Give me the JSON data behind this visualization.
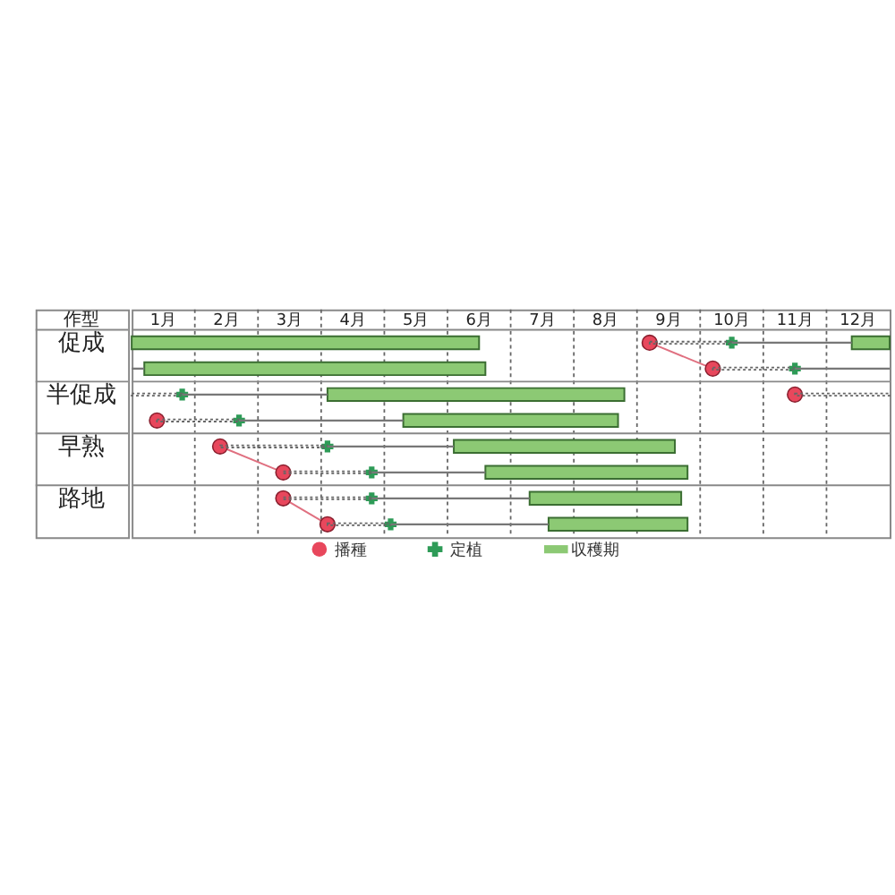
{
  "chart_data": {
    "type": "bar",
    "orientation": "horizontal",
    "ylabel": "作型",
    "categories": [
      "促成",
      null,
      "半促成",
      null,
      "早熟",
      null,
      "路地",
      null
    ],
    "xlim": [
      0,
      12
    ],
    "xticks": [
      {
        "value": 0.5,
        "label": "1月"
      },
      {
        "value": 1,
        "label": null
      },
      {
        "value": 1.5,
        "label": "2月"
      },
      {
        "value": 2,
        "label": null
      },
      {
        "value": 2.5,
        "label": "3月"
      },
      {
        "value": 3,
        "label": null
      },
      {
        "value": 3.5,
        "label": "4月"
      },
      {
        "value": 4,
        "label": null
      },
      {
        "value": 4.5,
        "label": "5月"
      },
      {
        "value": 5,
        "label": null
      },
      {
        "value": 5.5,
        "label": "6月"
      },
      {
        "value": 6,
        "label": null
      },
      {
        "value": 6.5,
        "label": "7月"
      },
      {
        "value": 7,
        "label": null
      },
      {
        "value": 7.5,
        "label": "8月"
      },
      {
        "value": 8,
        "label": null
      },
      {
        "value": 8.5,
        "label": "9月"
      },
      {
        "value": 9,
        "label": null
      },
      {
        "value": 9.5,
        "label": "10月"
      },
      {
        "value": 10,
        "label": null
      },
      {
        "value": 10.5,
        "label": "11月"
      },
      {
        "value": 11,
        "label": null
      },
      {
        "value": 11.5,
        "label": "12月"
      }
    ],
    "grid": true,
    "legend": "bottom",
    "series": [
      {
        "name": "播種",
        "type": "scatter",
        "marker": "circle",
        "color": "#e8475c",
        "values": [
          8.2,
          9.2,
          10.5,
          0.4,
          1.4,
          2.4,
          2.4,
          3.1
        ]
      },
      {
        "name": "定植",
        "type": "scatter",
        "marker": "cross",
        "color": "#2e9b57",
        "values": [
          9.5,
          10.5,
          0.8,
          1.7,
          3.1,
          3.8,
          3.8,
          4.1
        ]
      },
      {
        "name": "収穫期",
        "color": "#8cc974",
        "base": [
          0,
          0.2,
          3.1,
          4.3,
          5.1,
          5.6,
          6.3,
          6.6
        ],
        "values": [
          5.5,
          5.4,
          4.7,
          3.4,
          3.5,
          3.2,
          2.4,
          2.2
        ]
      },
      {
        "color": "#8cc974",
        "base": [
          11.4,
          null,
          null,
          null,
          null,
          null,
          null,
          null
        ],
        "values": [
          0.6,
          null,
          null,
          null,
          null,
          null,
          null,
          null
        ]
      },
      {
        "color": "#666666",
        "line_style": "dotted",
        "base": [
          8.2,
          9.2,
          10.5,
          0.4,
          1.4,
          2.4,
          2.4,
          3.1
        ],
        "values": [
          1.3,
          1.3,
          1.5,
          1.3,
          1.7,
          1.4,
          1.4,
          1.0
        ]
      },
      {
        "color": "#666666",
        "line_style": "dotted",
        "base": [
          null,
          null,
          0,
          null,
          null,
          null,
          null,
          null
        ],
        "values": [
          null,
          null,
          0.8,
          null,
          null,
          null,
          null,
          null
        ]
      },
      {
        "color": "#777777",
        "line_style": "solid",
        "base": [
          9.5,
          10.5,
          0.8,
          1.7,
          3.1,
          3.8,
          3.8,
          4.1
        ],
        "values": [
          1.9,
          1.5,
          2.3,
          2.6,
          2.0,
          1.8,
          2.5,
          2.5
        ]
      },
      {
        "color": "#777777",
        "line_style": "solid",
        "base": [
          null,
          0,
          null,
          null,
          null,
          null,
          null,
          null
        ],
        "values": [
          null,
          0.2,
          null,
          null,
          null,
          null,
          null,
          null
        ]
      },
      {
        "type": "line",
        "color": "#e07080",
        "values": [
          8.2,
          9.2,
          null,
          null,
          null,
          null,
          null,
          null
        ]
      },
      {
        "type": "line",
        "color": "#e07080",
        "values": [
          null,
          null,
          null,
          null,
          1.4,
          2.4,
          null,
          null
        ]
      },
      {
        "type": "line",
        "color": "#e07080",
        "values": [
          null,
          null,
          null,
          null,
          null,
          null,
          2.4,
          3.1
        ]
      }
    ]
  }
}
